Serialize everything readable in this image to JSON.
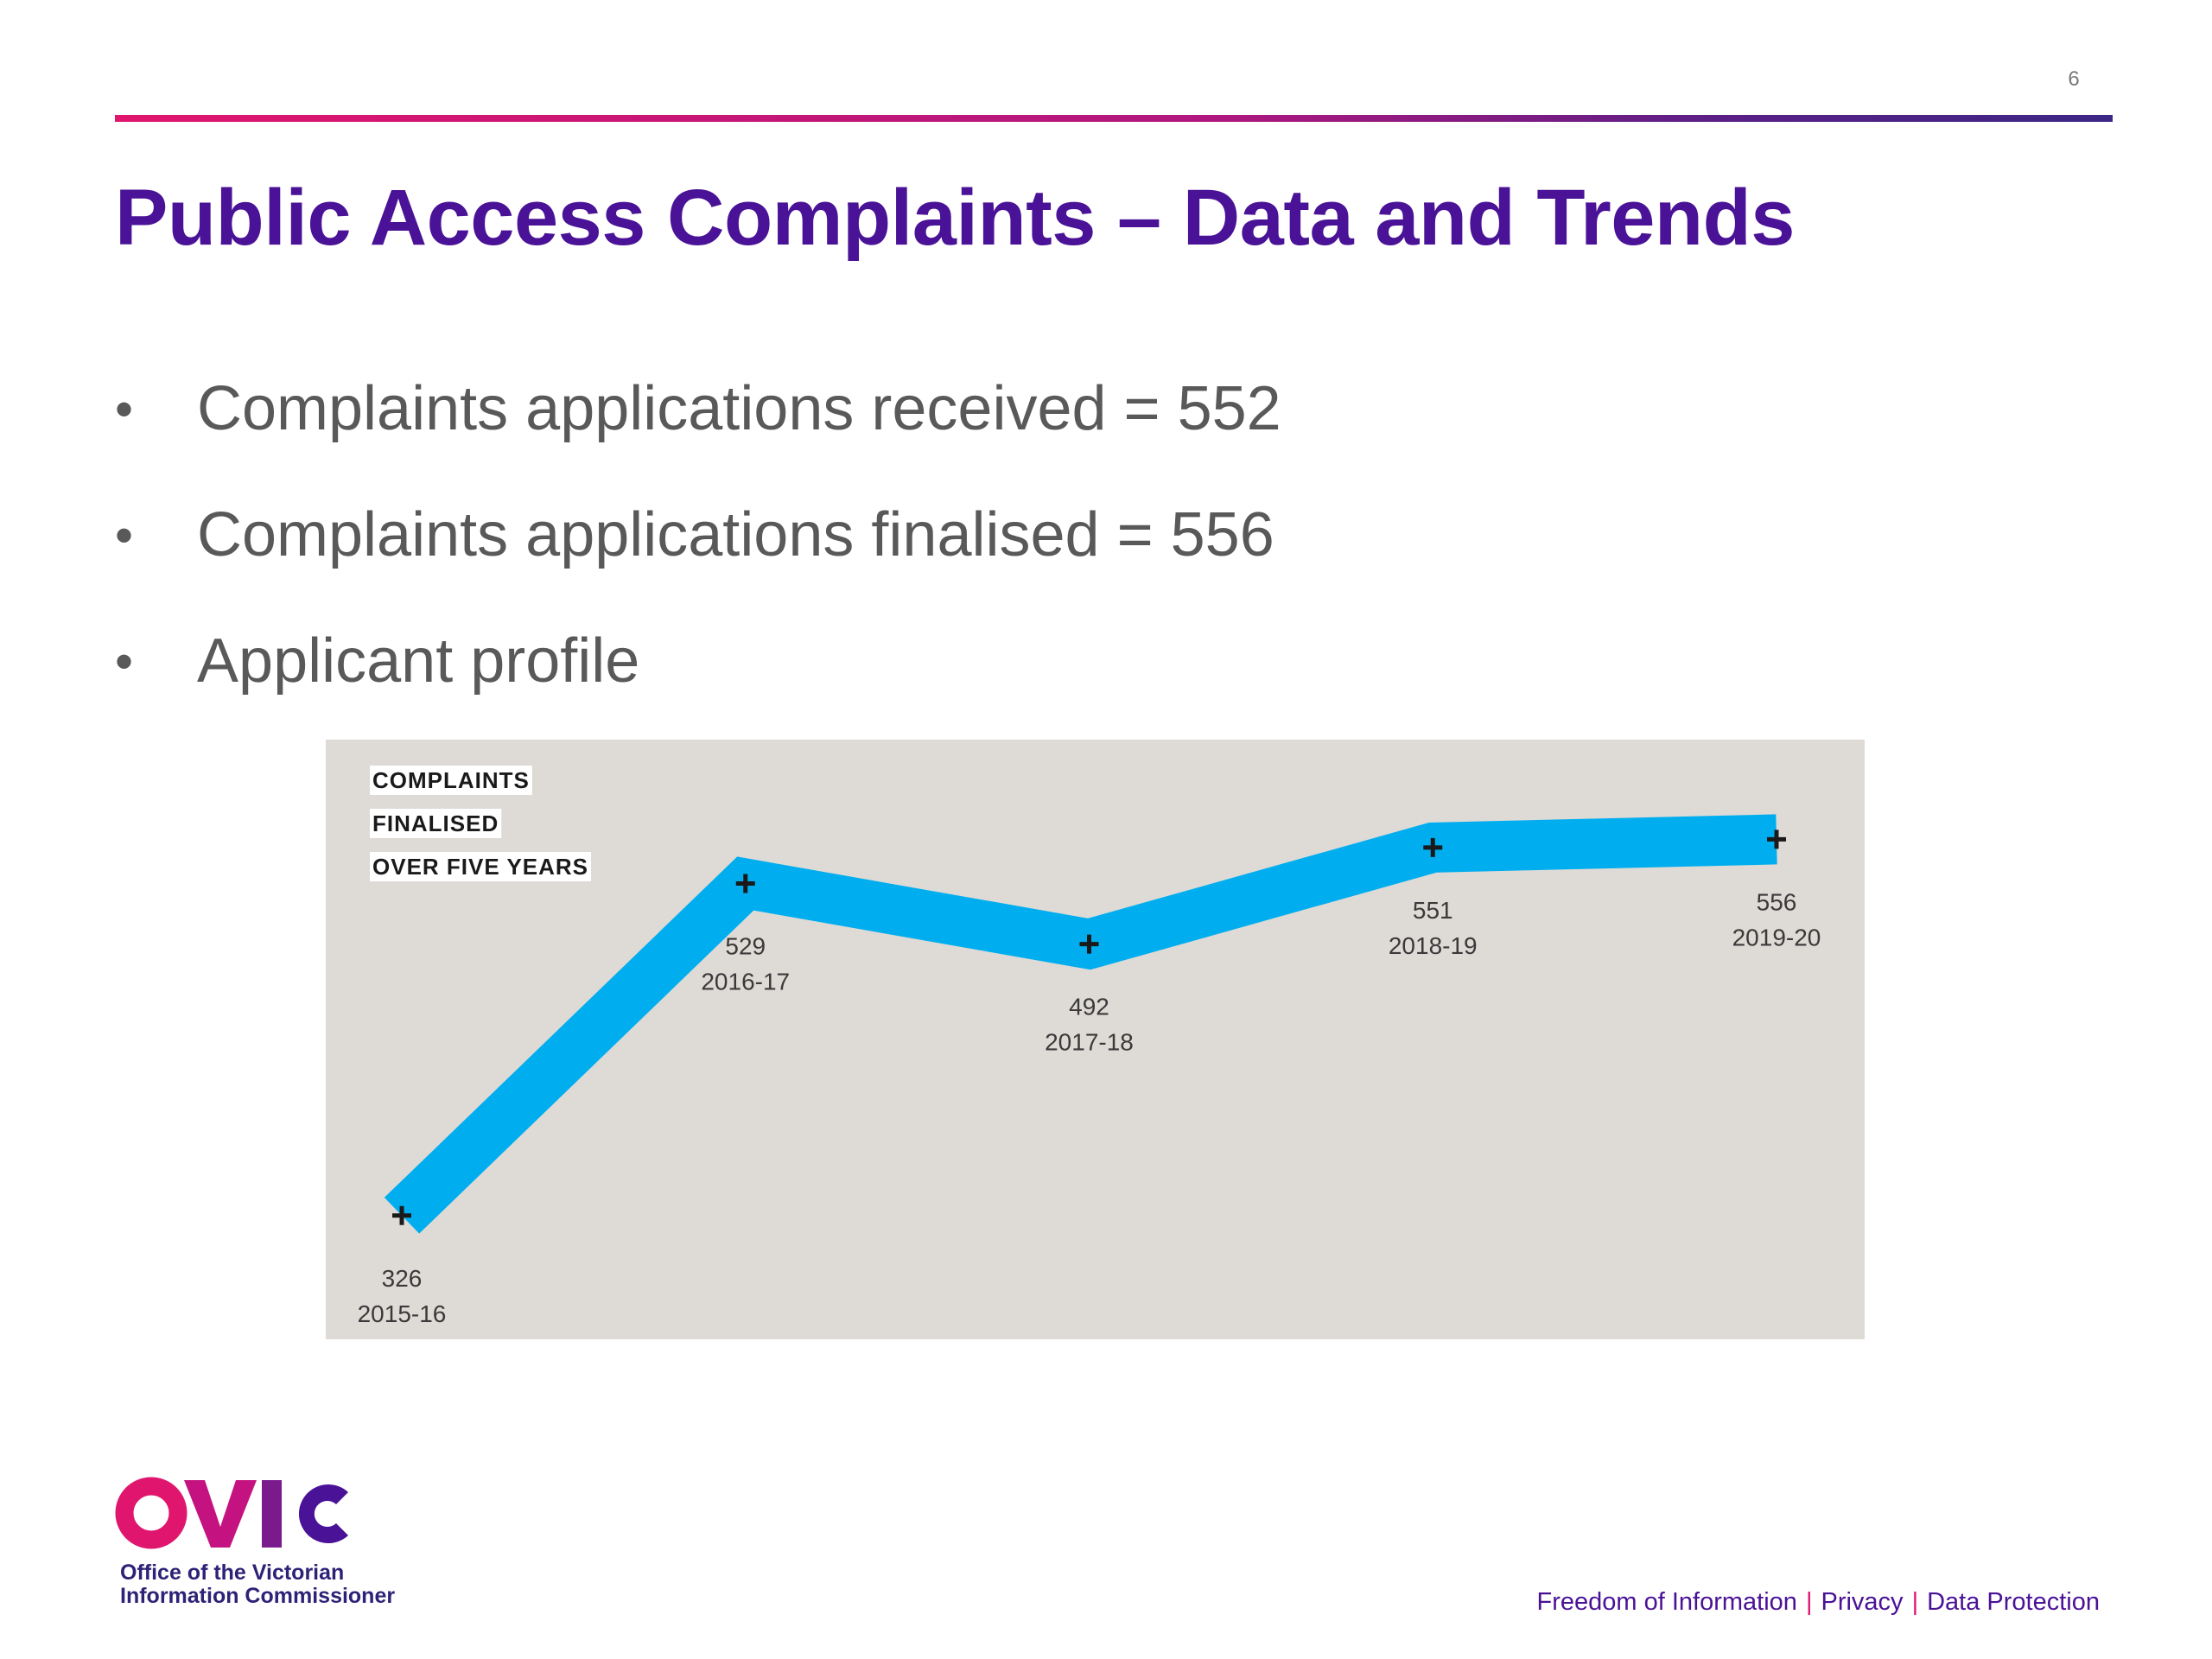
{
  "page": {
    "number": "6",
    "title": "Public Access Complaints – Data and Trends"
  },
  "bullets": [
    "Complaints applications received = 552",
    "Complaints applications finalised = 556",
    "Applicant profile"
  ],
  "chart_data": {
    "type": "line",
    "title_lines": [
      "COMPLAINTS",
      "FINALISED",
      "OVER FIVE YEARS"
    ],
    "categories": [
      "2015-16",
      "2016-17",
      "2017-18",
      "2018-19",
      "2019-20"
    ],
    "values": [
      326,
      529,
      492,
      551,
      556
    ],
    "value_labels": [
      "326",
      "529",
      "492",
      "551",
      "556"
    ],
    "xlabel": "",
    "ylabel": "",
    "axes_visible": false,
    "grid": false,
    "marker": "plus",
    "colors": {
      "line": "#00aeef",
      "background": "#dedad6",
      "marker": "#1a1a1a",
      "label": "#3a3a3a"
    }
  },
  "logo": {
    "wordmark": "OVIC",
    "line1": "Office of the Victorian",
    "line2": "Information Commissioner",
    "colors": {
      "pink": "#e0166e",
      "purple": "#4a1296",
      "text": "#2d2277"
    }
  },
  "footer": {
    "links": [
      "Freedom of Information",
      "Privacy",
      "Data Protection"
    ],
    "separator": "|",
    "color": "#4a1296",
    "separator_color": "#e0166e"
  }
}
